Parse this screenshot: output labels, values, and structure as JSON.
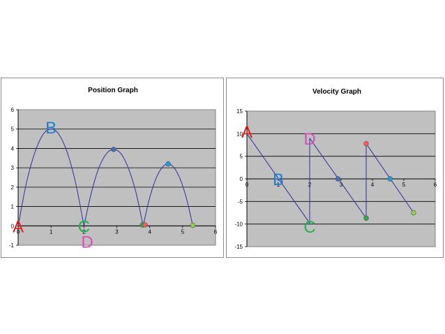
{
  "chart_data": [
    {
      "type": "line",
      "title": "Position Graph",
      "xlabel": "",
      "ylabel": "",
      "xlim": [
        0,
        6
      ],
      "ylim": [
        -1,
        6
      ],
      "x_ticks": [
        0,
        1,
        2,
        3,
        4,
        5,
        6
      ],
      "y_ticks": [
        -1,
        0,
        1,
        2,
        3,
        4,
        5,
        6
      ],
      "grid": true,
      "plot_background": "#c0c0c0",
      "line_color": "#3b3b9c",
      "series": [
        {
          "segment": "bounce-1",
          "x": [
            0,
            0.25,
            0.5,
            0.75,
            1.0,
            1.25,
            1.5,
            1.75,
            2.0
          ],
          "y": [
            0,
            2.2,
            3.75,
            4.7,
            5.0,
            4.7,
            3.75,
            2.2,
            0
          ]
        },
        {
          "segment": "bounce-2",
          "x": [
            2.0,
            2.23,
            2.45,
            2.68,
            2.9,
            3.13,
            3.35,
            3.58,
            3.8
          ],
          "y": [
            0,
            1.74,
            2.98,
            3.72,
            3.95,
            3.72,
            2.98,
            1.74,
            0
          ]
        },
        {
          "segment": "bounce-3",
          "x": [
            3.8,
            3.99,
            4.18,
            4.37,
            4.56,
            4.74,
            4.93,
            5.12,
            5.31
          ],
          "y": [
            0,
            1.4,
            2.4,
            3.0,
            3.2,
            3.0,
            2.4,
            1.4,
            0
          ]
        }
      ],
      "points": [
        {
          "x": 2.9,
          "y": 3.95,
          "color": "#4a6fb0"
        },
        {
          "x": 3.78,
          "y": 0.05,
          "color": "#2fa84f"
        },
        {
          "x": 3.86,
          "y": 0.05,
          "color": "#ff5a5a"
        },
        {
          "x": 4.56,
          "y": 3.2,
          "color": "#1f9be0"
        },
        {
          "x": 5.31,
          "y": 0.03,
          "color": "#8fd14f"
        }
      ],
      "annotations": [
        {
          "text": "A",
          "x": 0.0,
          "y": 0.0,
          "color": "#e61e1e"
        },
        {
          "text": "B",
          "x": 1.0,
          "y": 5.1,
          "color": "#1f7fd1"
        },
        {
          "text": "C",
          "x": 2.0,
          "y": 0.0,
          "color": "#22b14c"
        },
        {
          "text": "D",
          "x": 2.1,
          "y": -0.8,
          "color": "#d64fb6"
        }
      ]
    },
    {
      "type": "line",
      "title": "Velocity Graph",
      "xlabel": "",
      "ylabel": "",
      "xlim": [
        0,
        6
      ],
      "ylim": [
        -15,
        15
      ],
      "x_ticks": [
        0,
        1,
        2,
        3,
        4,
        5,
        6
      ],
      "y_ticks": [
        -15,
        -10,
        -5,
        0,
        5,
        10,
        15
      ],
      "grid": true,
      "plot_background": "#c0c0c0",
      "line_color": "#3b3b9c",
      "series": [
        {
          "segment": "v-1",
          "x": [
            0,
            2.0
          ],
          "y": [
            10,
            -9.8
          ]
        },
        {
          "segment": "jump-1",
          "x": [
            2.0,
            2.0
          ],
          "y": [
            -9.8,
            9.0
          ]
        },
        {
          "segment": "v-2",
          "x": [
            2.0,
            3.8
          ],
          "y": [
            9.0,
            -8.7
          ]
        },
        {
          "segment": "jump-2",
          "x": [
            3.8,
            3.8
          ],
          "y": [
            -8.7,
            7.8
          ]
        },
        {
          "segment": "v-3",
          "x": [
            3.8,
            5.31
          ],
          "y": [
            7.8,
            -7.5
          ]
        }
      ],
      "points": [
        {
          "x": 2.9,
          "y": 0.0,
          "color": "#4a6fb0"
        },
        {
          "x": 3.8,
          "y": -8.7,
          "color": "#2fa84f"
        },
        {
          "x": 3.8,
          "y": 7.8,
          "color": "#ff5a5a"
        },
        {
          "x": 4.56,
          "y": 0.0,
          "color": "#1f9be0"
        },
        {
          "x": 5.31,
          "y": -7.5,
          "color": "#8fd14f"
        }
      ],
      "annotations": [
        {
          "text": "A",
          "x": 0.0,
          "y": 10.5,
          "color": "#e61e1e"
        },
        {
          "text": "B",
          "x": 1.0,
          "y": 0.0,
          "color": "#1f7fd1"
        },
        {
          "text": "C",
          "x": 2.0,
          "y": -10.5,
          "color": "#22b14c"
        },
        {
          "text": "D",
          "x": 2.0,
          "y": 9.0,
          "color": "#d64fb6"
        }
      ]
    }
  ]
}
